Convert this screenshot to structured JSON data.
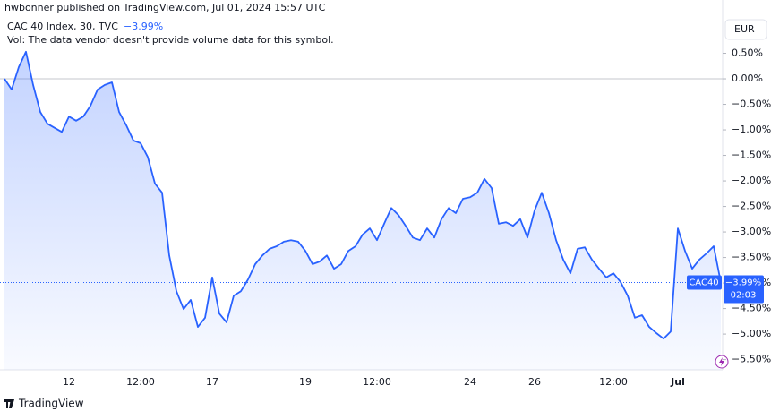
{
  "header": {
    "published": "hwbonner published on TradingView.com, Jul 01, 2024 15:57 UTC",
    "symbol": "CAC 40 Index, 30, TVC",
    "change": "−3.99%",
    "volume_note": "Vol: The data vendor doesn't provide volume data for this symbol.",
    "currency": "EUR"
  },
  "price_badge": {
    "symbol": "CAC40",
    "value": "−3.99%",
    "countdown": "02:03"
  },
  "footer": {
    "brand": "TradingView"
  },
  "chart_data": {
    "type": "area",
    "color": "#2962ff",
    "categories": [
      null,
      null,
      null,
      null,
      null,
      null,
      null,
      null,
      null,
      "12",
      null,
      null,
      null,
      null,
      null,
      null,
      null,
      null,
      null,
      "12:00",
      null,
      null,
      null,
      null,
      null,
      null,
      null,
      null,
      null,
      "17",
      null,
      null,
      null,
      null,
      null,
      null,
      null,
      null,
      null,
      null,
      null,
      null,
      "19",
      null,
      null,
      null,
      null,
      null,
      null,
      null,
      null,
      null,
      "12:00",
      null,
      null,
      null,
      null,
      null,
      null,
      null,
      null,
      null,
      null,
      null,
      null,
      "24",
      null,
      null,
      null,
      null,
      null,
      null,
      null,
      null,
      "26",
      null,
      null,
      null,
      null,
      null,
      null,
      null,
      null,
      null,
      null,
      "12:00",
      null,
      null,
      null,
      null,
      null,
      null,
      null,
      null,
      "Jul",
      null,
      null,
      null,
      null,
      null,
      null
    ],
    "values": [
      0,
      -0.21,
      0.23,
      0.53,
      -0.12,
      -0.65,
      -0.88,
      -0.96,
      -1.04,
      -0.74,
      -0.82,
      -0.74,
      -0.53,
      -0.21,
      -0.12,
      -0.07,
      -0.65,
      -0.91,
      -1.21,
      -1.26,
      -1.53,
      -2.05,
      -2.23,
      -3.46,
      -4.16,
      -4.51,
      -4.33,
      -4.86,
      -4.68,
      -3.89,
      -4.6,
      -4.77,
      -4.25,
      -4.16,
      -3.93,
      -3.63,
      -3.46,
      -3.33,
      -3.28,
      -3.19,
      -3.16,
      -3.19,
      -3.37,
      -3.63,
      -3.58,
      -3.46,
      -3.72,
      -3.63,
      -3.37,
      -3.28,
      -3.05,
      -2.93,
      -3.16,
      -2.84,
      -2.53,
      -2.67,
      -2.88,
      -3.11,
      -3.16,
      -2.93,
      -3.11,
      -2.75,
      -2.53,
      -2.63,
      -2.35,
      -2.32,
      -2.23,
      -1.96,
      -2.14,
      -2.84,
      -2.81,
      -2.88,
      -2.75,
      -3.11,
      -2.58,
      -2.23,
      -2.63,
      -3.16,
      -3.54,
      -3.81,
      -3.33,
      -3.3,
      -3.54,
      -3.72,
      -3.89,
      -3.81,
      -3.98,
      -4.25,
      -4.68,
      -4.63,
      -4.86,
      -4.98,
      -5.09,
      -4.95,
      -2.93,
      -3.37,
      -3.72,
      -3.54,
      -3.42,
      -3.28,
      -3.99
    ],
    "ylim": [
      -5.7,
      1.544
    ],
    "yticks": [
      {
        "value": 0.5,
        "label": "0.50%"
      },
      {
        "value": 0,
        "label": "0.00%"
      },
      {
        "value": -0.5,
        "label": "−0.50%"
      },
      {
        "value": -1,
        "label": "−1.00%"
      },
      {
        "value": -1.5,
        "label": "−1.50%"
      },
      {
        "value": -2,
        "label": "−2.00%"
      },
      {
        "value": -2.5,
        "label": "−2.50%"
      },
      {
        "value": -3,
        "label": "−3.00%"
      },
      {
        "value": -3.5,
        "label": "−3.50%"
      },
      {
        "value": -4,
        "label": "−4.00%"
      },
      {
        "value": -4.5,
        "label": "−4.50%"
      },
      {
        "value": -5,
        "label": "−5.00%"
      },
      {
        "value": -5.5,
        "label": "−5.50%"
      }
    ]
  }
}
